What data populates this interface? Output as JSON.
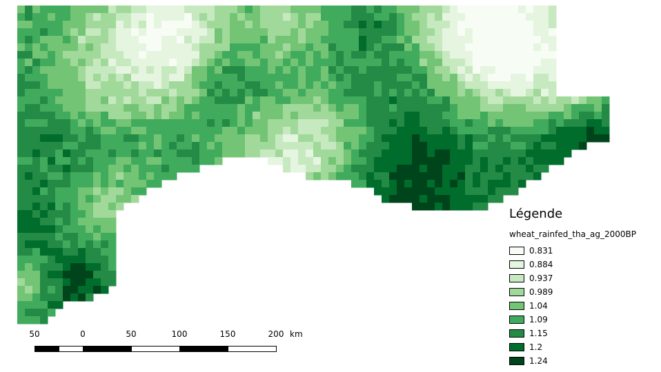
{
  "legend": {
    "title": "Légende",
    "layer_name": "wheat_rainfed_tha_ag_2000BP",
    "classes": [
      {
        "label": "0.831",
        "color": "#f7fcf5"
      },
      {
        "label": "0.884",
        "color": "#e5f5e0"
      },
      {
        "label": "0.937",
        "color": "#c7e9c0"
      },
      {
        "label": "0.989",
        "color": "#a1d99b"
      },
      {
        "label": "1.04",
        "color": "#74c476"
      },
      {
        "label": "1.09",
        "color": "#41ab5d"
      },
      {
        "label": "1.15",
        "color": "#238b45"
      },
      {
        "label": "1.2",
        "color": "#006d2c"
      },
      {
        "label": "1.24",
        "color": "#00441b"
      }
    ]
  },
  "scalebar": {
    "labels": [
      "50",
      "0",
      "50",
      "100",
      "150",
      "200"
    ],
    "unit": "km"
  }
}
